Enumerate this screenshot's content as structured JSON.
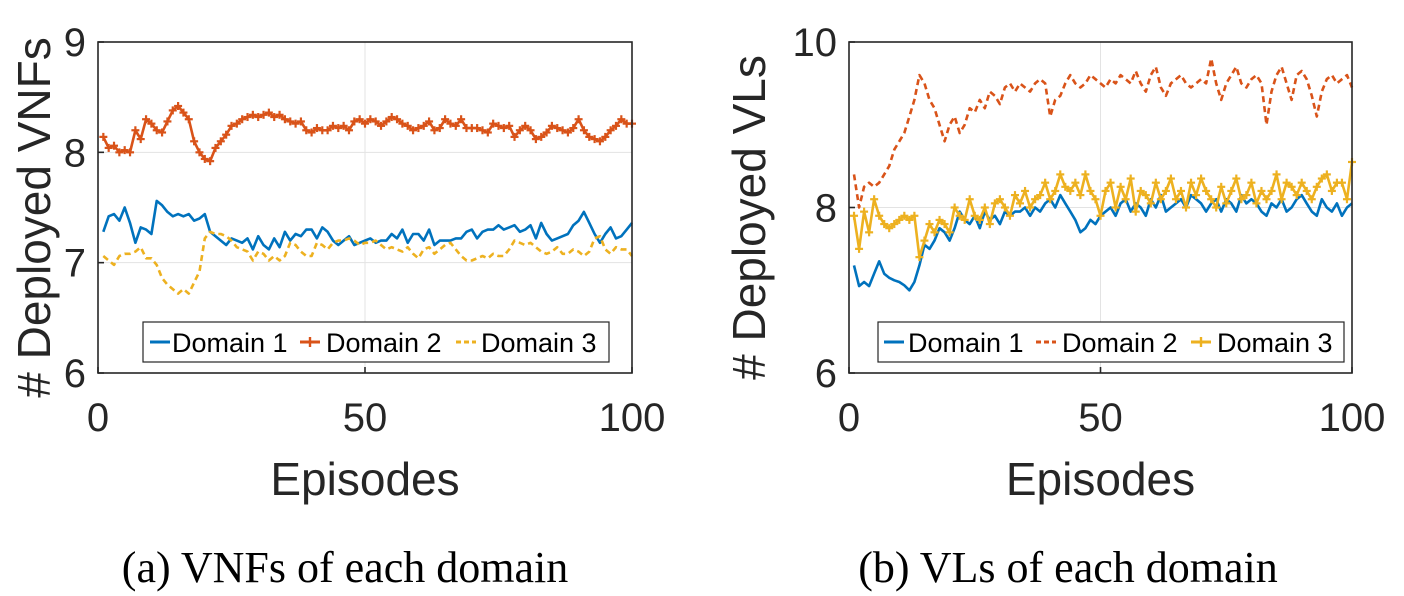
{
  "chart_data": [
    {
      "type": "line",
      "ylabel": "# Deployed VNFs",
      "xlabel": "Episodes",
      "caption": "(a) VNFs of each domain",
      "xlim": [
        0,
        100
      ],
      "ylim": [
        6,
        9
      ],
      "xticks": [
        0,
        50,
        100
      ],
      "yticks": [
        6,
        7,
        8,
        9
      ],
      "xtick_labels": [
        "0",
        "50",
        "100"
      ],
      "ytick_labels": [
        "6",
        "7",
        "8",
        "9"
      ],
      "grid": true,
      "legend_placement": "bottom",
      "x": [
        1,
        2,
        3,
        4,
        5,
        6,
        7,
        8,
        9,
        10,
        11,
        12,
        13,
        14,
        15,
        16,
        17,
        18,
        19,
        20,
        21,
        22,
        23,
        24,
        25,
        26,
        27,
        28,
        29,
        30,
        31,
        32,
        33,
        34,
        35,
        36,
        37,
        38,
        39,
        40,
        41,
        42,
        43,
        44,
        45,
        46,
        47,
        48,
        49,
        50,
        51,
        52,
        53,
        54,
        55,
        56,
        57,
        58,
        59,
        60,
        61,
        62,
        63,
        64,
        65,
        66,
        67,
        68,
        69,
        70,
        71,
        72,
        73,
        74,
        75,
        76,
        77,
        78,
        79,
        80,
        81,
        82,
        83,
        84,
        85,
        86,
        87,
        88,
        89,
        90,
        91,
        92,
        93,
        94,
        95,
        96,
        97,
        98,
        99,
        100
      ],
      "series": [
        {
          "name": "Domain 1",
          "color": "#0072BD",
          "style": "solid",
          "marker": "none",
          "values": [
            7.28,
            7.42,
            7.44,
            7.38,
            7.5,
            7.36,
            7.18,
            7.32,
            7.3,
            7.26,
            7.56,
            7.52,
            7.46,
            7.42,
            7.44,
            7.42,
            7.44,
            7.38,
            7.4,
            7.44,
            7.28,
            7.24,
            7.2,
            7.16,
            7.22,
            7.2,
            7.18,
            7.22,
            7.12,
            7.24,
            7.16,
            7.12,
            7.22,
            7.14,
            7.28,
            7.2,
            7.26,
            7.24,
            7.3,
            7.3,
            7.22,
            7.32,
            7.28,
            7.2,
            7.16,
            7.2,
            7.24,
            7.16,
            7.18,
            7.2,
            7.22,
            7.18,
            7.2,
            7.2,
            7.26,
            7.22,
            7.3,
            7.18,
            7.26,
            7.26,
            7.2,
            7.3,
            7.16,
            7.2,
            7.2,
            7.2,
            7.22,
            7.22,
            7.28,
            7.3,
            7.22,
            7.28,
            7.3,
            7.3,
            7.34,
            7.3,
            7.32,
            7.34,
            7.28,
            7.3,
            7.34,
            7.22,
            7.36,
            7.26,
            7.2,
            7.22,
            7.24,
            7.26,
            7.34,
            7.38,
            7.46,
            7.36,
            7.26,
            7.18,
            7.26,
            7.32,
            7.22,
            7.24,
            7.3,
            7.36
          ]
        },
        {
          "name": "Domain 2",
          "color": "#D95319",
          "style": "solid",
          "marker": "plus",
          "values": [
            8.14,
            8.04,
            8.06,
            8.0,
            8.02,
            8.0,
            8.2,
            8.12,
            8.3,
            8.26,
            8.2,
            8.18,
            8.28,
            8.38,
            8.42,
            8.36,
            8.3,
            8.1,
            8.0,
            7.94,
            7.92,
            8.04,
            8.1,
            8.16,
            8.24,
            8.26,
            8.3,
            8.32,
            8.34,
            8.32,
            8.34,
            8.36,
            8.32,
            8.34,
            8.3,
            8.28,
            8.26,
            8.28,
            8.2,
            8.18,
            8.22,
            8.2,
            8.2,
            8.24,
            8.22,
            8.24,
            8.2,
            8.28,
            8.3,
            8.26,
            8.3,
            8.28,
            8.24,
            8.28,
            8.32,
            8.3,
            8.26,
            8.24,
            8.2,
            8.22,
            8.24,
            8.28,
            8.2,
            8.22,
            8.3,
            8.26,
            8.24,
            8.3,
            8.22,
            8.22,
            8.22,
            8.2,
            8.18,
            8.26,
            8.24,
            8.22,
            8.24,
            8.14,
            8.2,
            8.24,
            8.2,
            8.12,
            8.14,
            8.18,
            8.24,
            8.22,
            8.2,
            8.18,
            8.22,
            8.3,
            8.2,
            8.14,
            8.12,
            8.1,
            8.14,
            8.2,
            8.24,
            8.3,
            8.26,
            8.26
          ]
        },
        {
          "name": "Domain 3",
          "color": "#EDB120",
          "style": "dashed",
          "marker": "none",
          "values": [
            7.06,
            7.02,
            6.98,
            7.06,
            7.08,
            7.08,
            7.1,
            7.14,
            7.04,
            7.04,
            6.98,
            6.86,
            6.8,
            6.76,
            6.72,
            6.76,
            6.72,
            6.82,
            6.92,
            7.22,
            7.28,
            7.26,
            7.26,
            7.24,
            7.2,
            7.14,
            7.12,
            7.1,
            7.02,
            7.1,
            7.08,
            7.02,
            7.06,
            7.02,
            7.06,
            7.18,
            7.16,
            7.1,
            7.06,
            7.06,
            7.18,
            7.16,
            7.12,
            7.18,
            7.2,
            7.2,
            7.22,
            7.2,
            7.16,
            7.18,
            7.18,
            7.2,
            7.16,
            7.12,
            7.14,
            7.12,
            7.1,
            7.14,
            7.08,
            7.04,
            7.12,
            7.14,
            7.08,
            7.12,
            7.16,
            7.18,
            7.12,
            7.06,
            7.02,
            7.02,
            7.04,
            7.06,
            7.04,
            7.08,
            7.06,
            7.06,
            7.12,
            7.2,
            7.18,
            7.16,
            7.18,
            7.14,
            7.1,
            7.08,
            7.1,
            7.14,
            7.08,
            7.08,
            7.12,
            7.1,
            7.06,
            7.1,
            7.22,
            7.24,
            7.12,
            7.08,
            7.14,
            7.12,
            7.12,
            7.06
          ]
        }
      ]
    },
    {
      "type": "line",
      "ylabel": "# Deployed VLs",
      "xlabel": "Episodes",
      "caption": "(b) VLs of each domain",
      "xlim": [
        0,
        100
      ],
      "ylim": [
        6,
        10
      ],
      "xticks": [
        0,
        50,
        100
      ],
      "yticks": [
        6,
        8,
        10
      ],
      "xtick_labels": [
        "0",
        "50",
        "100"
      ],
      "ytick_labels": [
        "6",
        "8",
        "10"
      ],
      "grid": true,
      "legend_placement": "bottom",
      "x": [
        1,
        2,
        3,
        4,
        5,
        6,
        7,
        8,
        9,
        10,
        11,
        12,
        13,
        14,
        15,
        16,
        17,
        18,
        19,
        20,
        21,
        22,
        23,
        24,
        25,
        26,
        27,
        28,
        29,
        30,
        31,
        32,
        33,
        34,
        35,
        36,
        37,
        38,
        39,
        40,
        41,
        42,
        43,
        44,
        45,
        46,
        47,
        48,
        49,
        50,
        51,
        52,
        53,
        54,
        55,
        56,
        57,
        58,
        59,
        60,
        61,
        62,
        63,
        64,
        65,
        66,
        67,
        68,
        69,
        70,
        71,
        72,
        73,
        74,
        75,
        76,
        77,
        78,
        79,
        80,
        81,
        82,
        83,
        84,
        85,
        86,
        87,
        88,
        89,
        90,
        91,
        92,
        93,
        94,
        95,
        96,
        97,
        98,
        99,
        100
      ],
      "series": [
        {
          "name": "Domain 1",
          "color": "#0072BD",
          "style": "solid",
          "marker": "none",
          "values": [
            7.3,
            7.05,
            7.1,
            7.05,
            7.2,
            7.35,
            7.2,
            7.15,
            7.12,
            7.1,
            7.06,
            7.0,
            7.1,
            7.3,
            7.55,
            7.5,
            7.6,
            7.75,
            7.7,
            7.6,
            7.75,
            7.95,
            7.85,
            7.8,
            7.9,
            7.75,
            7.95,
            7.85,
            7.9,
            7.8,
            7.95,
            7.9,
            7.95,
            7.95,
            8.0,
            7.9,
            8.0,
            7.95,
            8.05,
            8.1,
            8.0,
            8.15,
            8.05,
            7.95,
            7.85,
            7.7,
            7.75,
            7.85,
            7.8,
            7.9,
            7.95,
            8.0,
            7.9,
            8.05,
            8.1,
            7.95,
            8.05,
            8.0,
            7.9,
            8.1,
            8.0,
            8.15,
            7.95,
            8.0,
            8.05,
            8.1,
            8.0,
            8.15,
            8.1,
            8.05,
            7.95,
            8.05,
            8.1,
            7.95,
            8.1,
            8.05,
            7.95,
            8.15,
            8.05,
            8.1,
            8.05,
            7.95,
            7.9,
            8.05,
            8.0,
            8.1,
            7.95,
            8.0,
            8.1,
            8.15,
            8.05,
            7.95,
            7.9,
            8.1,
            8.0,
            7.95,
            8.05,
            7.9,
            8.0,
            8.05
          ]
        },
        {
          "name": "Domain 2",
          "color": "#D95319",
          "style": "dashed",
          "marker": "none",
          "values": [
            8.4,
            8.0,
            8.25,
            8.3,
            8.25,
            8.3,
            8.4,
            8.5,
            8.7,
            8.8,
            8.9,
            9.1,
            9.3,
            9.6,
            9.5,
            9.3,
            9.2,
            9.0,
            8.8,
            9.0,
            9.1,
            8.9,
            9.0,
            9.2,
            9.15,
            9.3,
            9.2,
            9.4,
            9.35,
            9.25,
            9.45,
            9.5,
            9.4,
            9.5,
            9.45,
            9.4,
            9.5,
            9.55,
            9.5,
            9.1,
            9.3,
            9.35,
            9.5,
            9.6,
            9.5,
            9.45,
            9.5,
            9.6,
            9.55,
            9.5,
            9.45,
            9.55,
            9.5,
            9.6,
            9.55,
            9.5,
            9.65,
            9.5,
            9.4,
            9.6,
            9.7,
            9.45,
            9.35,
            9.5,
            9.55,
            9.6,
            9.5,
            9.45,
            9.5,
            9.55,
            9.5,
            9.8,
            9.5,
            9.3,
            9.5,
            9.6,
            9.7,
            9.5,
            9.45,
            9.55,
            9.6,
            9.5,
            9.0,
            9.4,
            9.6,
            9.7,
            9.5,
            9.3,
            9.6,
            9.65,
            9.55,
            9.35,
            9.1,
            9.4,
            9.55,
            9.6,
            9.5,
            9.55,
            9.6,
            9.45
          ]
        },
        {
          "name": "Domain 3",
          "color": "#EDB120",
          "style": "solid",
          "marker": "plus",
          "values": [
            7.9,
            7.5,
            7.95,
            7.7,
            8.1,
            7.9,
            7.8,
            7.75,
            7.8,
            7.85,
            7.9,
            7.85,
            7.9,
            7.4,
            7.6,
            7.8,
            7.7,
            7.85,
            7.8,
            7.7,
            8.0,
            7.9,
            7.85,
            8.1,
            7.9,
            7.85,
            8.0,
            7.8,
            8.05,
            8.1,
            8.0,
            7.9,
            8.15,
            8.05,
            8.2,
            8.0,
            8.1,
            8.15,
            8.3,
            8.1,
            8.2,
            8.4,
            8.25,
            8.2,
            8.3,
            8.15,
            8.4,
            8.2,
            8.1,
            7.9,
            8.2,
            8.3,
            8.0,
            8.25,
            8.1,
            8.35,
            7.95,
            8.2,
            8.15,
            8.05,
            8.3,
            8.1,
            8.2,
            8.35,
            8.1,
            8.2,
            8.0,
            8.3,
            8.15,
            8.35,
            8.2,
            8.1,
            8.0,
            8.25,
            8.05,
            8.2,
            8.35,
            8.1,
            8.15,
            8.3,
            8.05,
            8.2,
            8.1,
            8.2,
            8.4,
            8.1,
            8.3,
            8.25,
            8.15,
            8.3,
            8.2,
            8.1,
            8.25,
            8.35,
            8.4,
            8.2,
            8.3,
            8.3,
            8.1,
            8.55
          ]
        }
      ]
    }
  ]
}
